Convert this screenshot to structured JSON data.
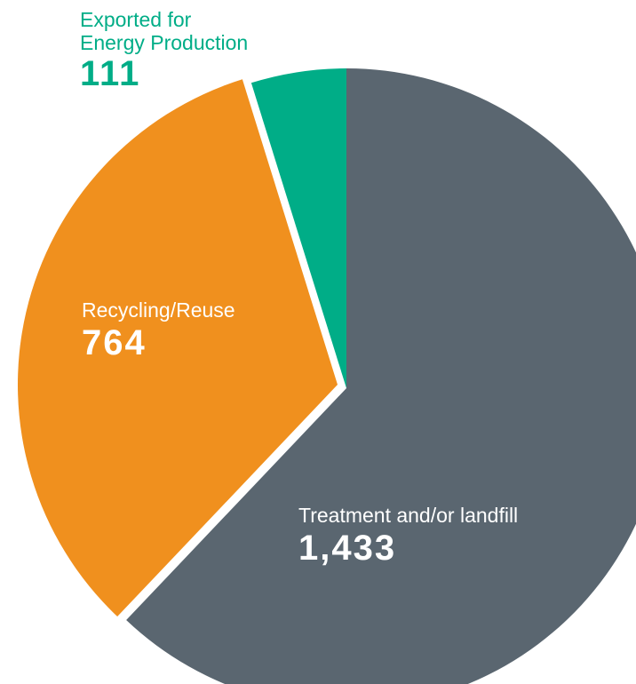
{
  "chart_data": {
    "type": "pie",
    "categories": [
      "Treatment and/or landfill",
      "Recycling/Reuse",
      "Exported for Energy Production"
    ],
    "values": [
      1433,
      764,
      111
    ],
    "value_labels": [
      "1,433",
      "764",
      "111"
    ],
    "colors": [
      "#5a6670",
      "#f0901e",
      "#00ad87"
    ]
  }
}
